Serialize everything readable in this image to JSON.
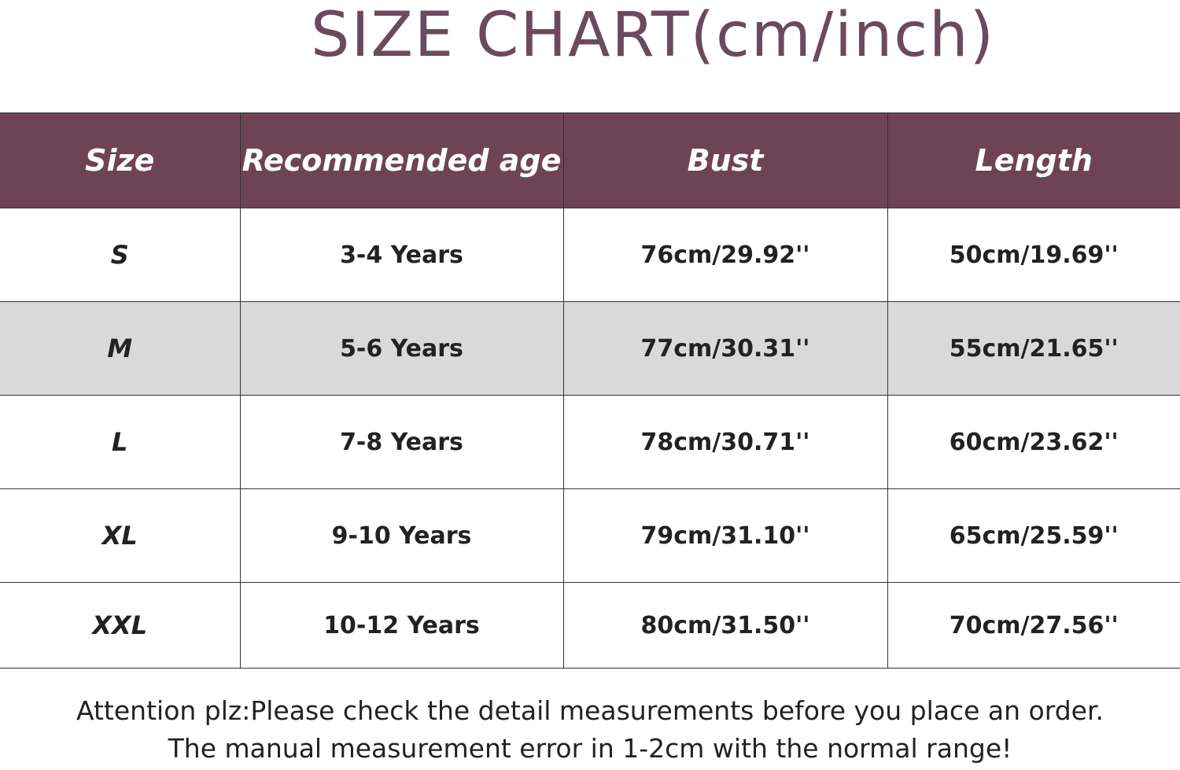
{
  "title": "SIZE CHART(cm/inch)",
  "colors": {
    "header_bg": "#6e4455",
    "title": "#6b4a5e",
    "shaded_row": "#d9d9d9"
  },
  "table": {
    "headers": [
      "Size",
      "Recommended age",
      "Bust",
      "Length"
    ],
    "rows": [
      [
        "S",
        "3-4 Years",
        "76cm/29.92''",
        "50cm/19.69''"
      ],
      [
        "M",
        "5-6 Years",
        "77cm/30.31''",
        "55cm/21.65''"
      ],
      [
        "L",
        "7-8 Years",
        "78cm/30.71''",
        "60cm/23.62''"
      ],
      [
        "XL",
        "9-10 Years",
        "79cm/31.10''",
        "65cm/25.59''"
      ],
      [
        "XXL",
        "10-12 Years",
        "80cm/31.50''",
        "70cm/27.56''"
      ]
    ]
  },
  "notes": [
    "Attention plz:Please check the detail measurements before you place an order.",
    "The manual measurement error in 1-2cm with the normal range!"
  ]
}
